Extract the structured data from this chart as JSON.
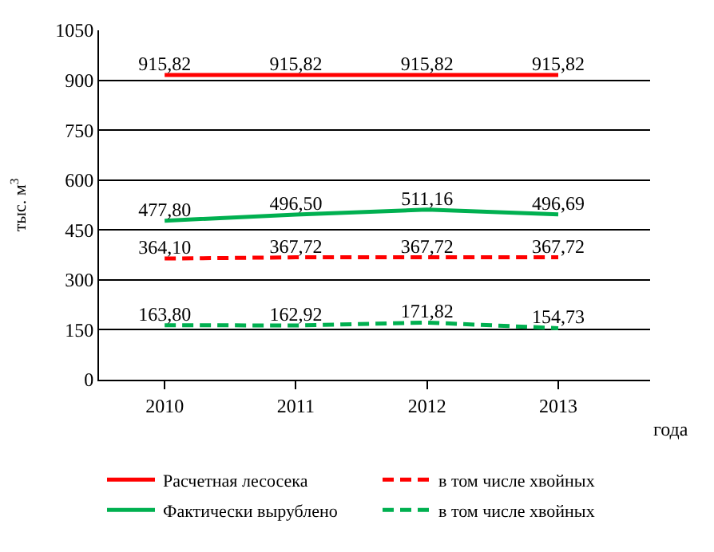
{
  "chart_data": {
    "type": "line",
    "ylabel": "тыс. м$^{3}$",
    "xlabel": "года",
    "categories": [
      "2010",
      "2011",
      "2012",
      "2013"
    ],
    "series": [
      {
        "name": "Расчетная лесосека",
        "color": "#ff0000",
        "line_style": "solid",
        "values": [
          915.82,
          915.82,
          915.82,
          915.82
        ],
        "value_labels": [
          "915,82",
          "915,82",
          "915,82",
          "915,82"
        ]
      },
      {
        "name": "в том числе хвойных",
        "color": "#ff0000",
        "line_style": "dashed",
        "values": [
          364.1,
          367.72,
          367.72,
          367.72
        ],
        "value_labels": [
          "364,10",
          "367,72",
          "367,72",
          "367,72"
        ]
      },
      {
        "name": "Фактически вырублено",
        "color": "#00b050",
        "line_style": "solid",
        "values": [
          477.8,
          496.5,
          511.16,
          496.69
        ],
        "value_labels": [
          "477,80",
          "496,50",
          "511,16",
          "496,69"
        ]
      },
      {
        "name": "в том числе хвойных",
        "color": "#00b050",
        "line_style": "dashed",
        "values": [
          163.8,
          162.92,
          171.82,
          154.73
        ],
        "value_labels": [
          "163,80",
          "162,92",
          "171,82",
          "154,73"
        ]
      }
    ],
    "ylim": [
      0,
      1050
    ],
    "yticks": [
      0,
      150,
      300,
      450,
      600,
      750,
      900,
      1050
    ],
    "grid": "y",
    "legend": "bottom",
    "marker": "none"
  }
}
